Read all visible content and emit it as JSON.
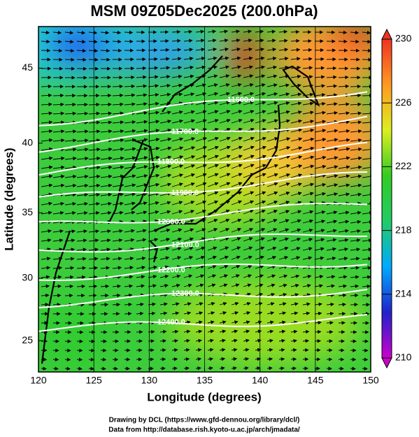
{
  "chart_data": {
    "type": "map",
    "title": "MSM 09Z05Dec2025 (200.0hPa)",
    "x_label": "Longitude (degrees)",
    "y_label": "Latitude  (degrees)",
    "projection": "mercator",
    "xlim": [
      120,
      150
    ],
    "ylim": [
      22.4,
      47.6
    ],
    "xticks": [
      120,
      125,
      130,
      135,
      140,
      145,
      150
    ],
    "yticks": [
      25,
      30,
      35,
      40,
      45
    ],
    "xgrid": true,
    "contours": [
      {
        "value": 11600,
        "label": "11600.0"
      },
      {
        "value": 11700,
        "label": "11700.0"
      },
      {
        "value": 11800,
        "label": "11800.0"
      },
      {
        "value": 11900,
        "label": "11900.0"
      },
      {
        "value": 12000,
        "label": "12000.0"
      },
      {
        "value": 12100,
        "label": "12100.0"
      },
      {
        "value": 12200,
        "label": "12200.0"
      },
      {
        "value": 12300,
        "label": "12300.0"
      },
      {
        "value": 12400,
        "label": "12400.0"
      }
    ],
    "colorbar": {
      "lim": [
        210,
        230
      ],
      "ticks": [
        210,
        214,
        218,
        222,
        226,
        230
      ],
      "colors": [
        "#cc00cc",
        "#2222cc",
        "#00aaff",
        "#22cc66",
        "#33cc22",
        "#ddee22",
        "#ff9922",
        "#ee3322"
      ]
    },
    "footer": [
      "Drawing by DCL (https://www.gfd-dennou.org/library/dcl/)",
      "Data from http://database.rish.kyoto-u.ac.jp/arch/jmadata/"
    ]
  }
}
